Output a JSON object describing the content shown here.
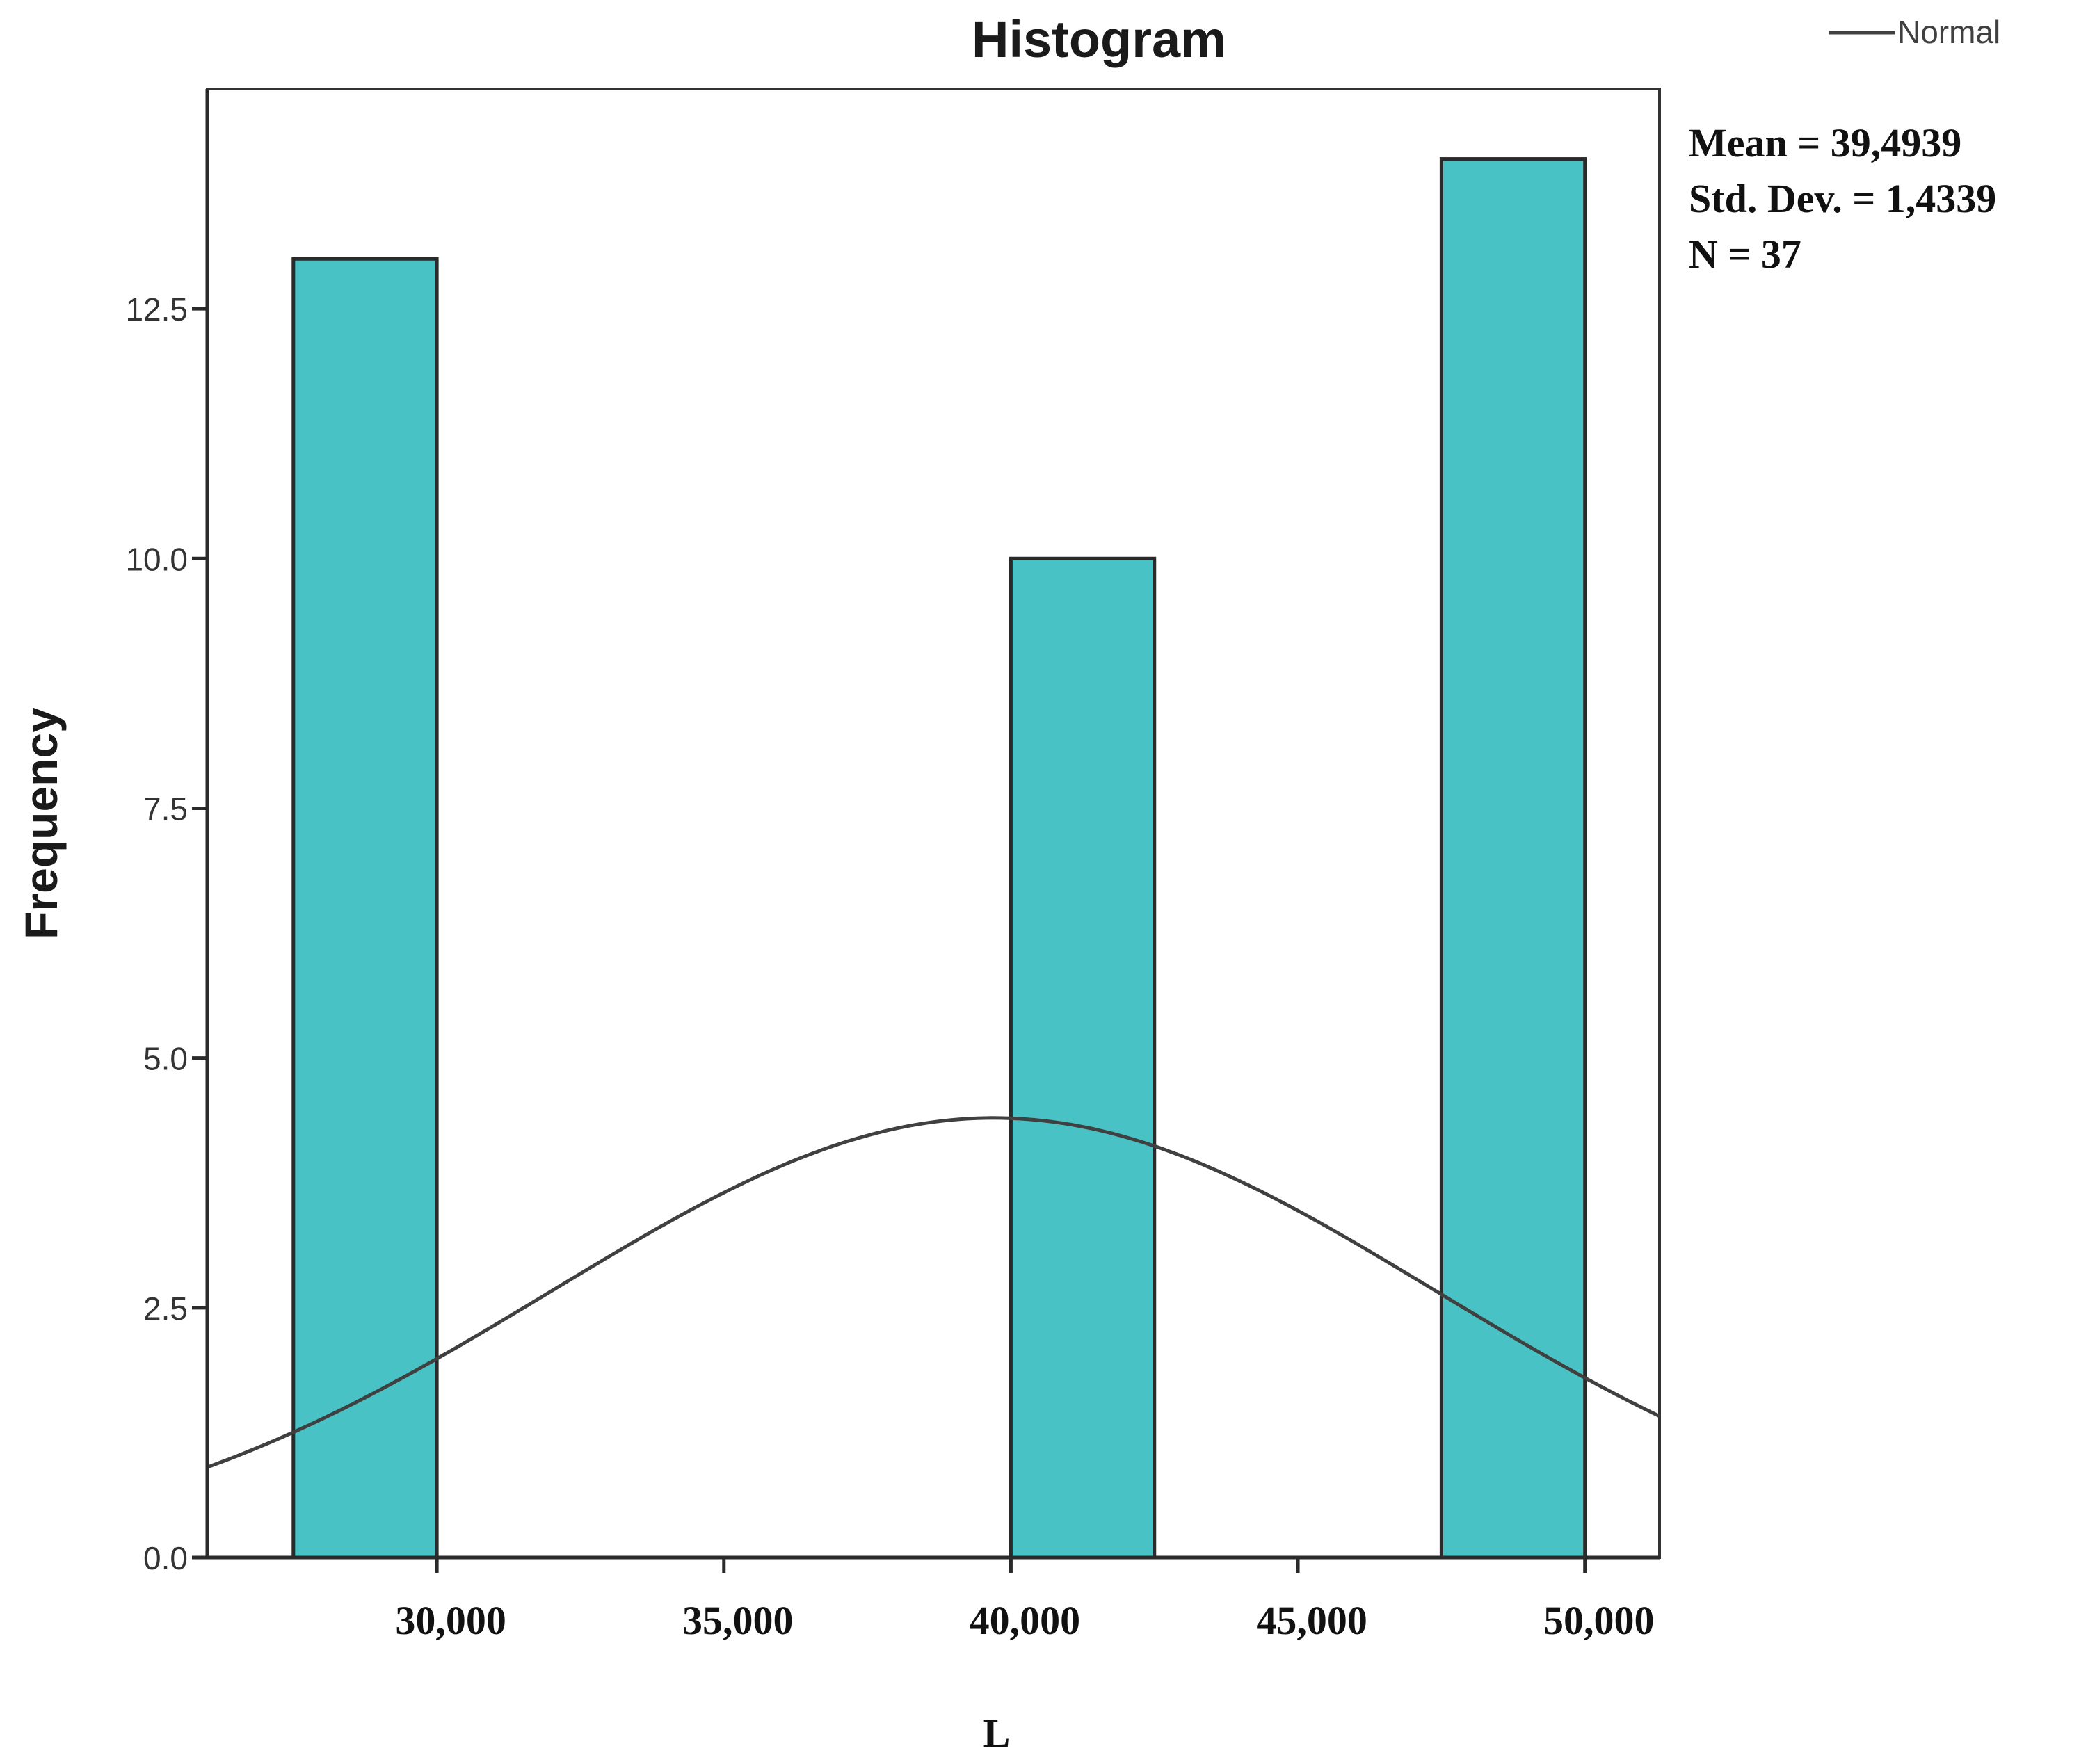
{
  "chart_data": {
    "type": "bar",
    "title": "Histogram",
    "xlabel": "L",
    "ylabel": "Frequency",
    "legend": {
      "position": "top-right",
      "entries": [
        {
          "label": "Normal",
          "type": "line",
          "color": "#404040"
        }
      ]
    },
    "stats": [
      "Mean = 39,4939",
      "Std. Dev. = 1,4339",
      "N = 37"
    ],
    "xlim": [
      26000,
      51300
    ],
    "ylim": [
      0,
      14.7
    ],
    "x_ticks": [
      {
        "value": 30000,
        "label": "30,000"
      },
      {
        "value": 35000,
        "label": "35,000"
      },
      {
        "value": 40000,
        "label": "40,000"
      },
      {
        "value": 45000,
        "label": "45,000"
      },
      {
        "value": 50000,
        "label": "50,000"
      }
    ],
    "y_ticks": [
      {
        "value": 0,
        "label": "0.0"
      },
      {
        "value": 2.5,
        "label": "2.5"
      },
      {
        "value": 5,
        "label": "5.0"
      },
      {
        "value": 7.5,
        "label": "7.5"
      },
      {
        "value": 10,
        "label": "10.0"
      },
      {
        "value": 12.5,
        "label": "12.5"
      }
    ],
    "bins": [
      {
        "x0": 27500,
        "x1": 30000,
        "value": 13
      },
      {
        "x0": 40000,
        "x1": 42500,
        "value": 10
      },
      {
        "x0": 47500,
        "x1": 50000,
        "value": 14
      }
    ],
    "normal_curve": {
      "peak_x": 39700,
      "peak_y": 4.4,
      "sigma": 7700
    },
    "grid": false,
    "colors": {
      "bar_fill": "#48c2c5",
      "bar_stroke": "#2a2a2a",
      "curve": "#404040",
      "axis": "#2a2a2a",
      "frame": "#333333"
    }
  }
}
